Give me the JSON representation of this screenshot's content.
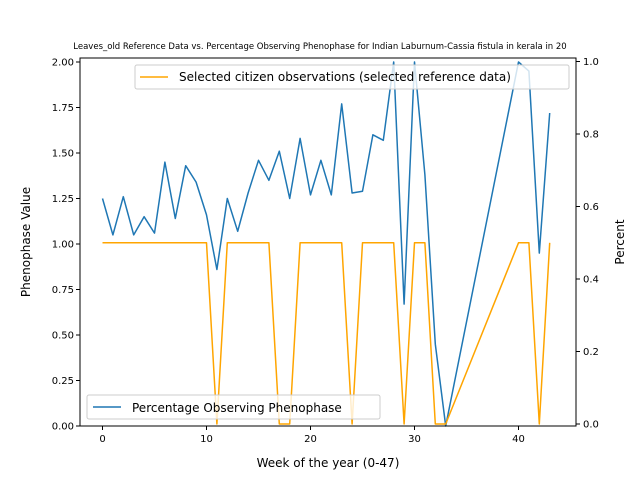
{
  "chart_data": {
    "type": "line",
    "title": "Leaves_old Reference Data vs. Percentage Observing Phenophase for Indian Laburnum-Cassia fistula in kerala in 20",
    "xlabel": "Week of the year (0-47)",
    "ylabel_left": "Phenophase Value",
    "ylabel_right": "Percent",
    "xlim": [
      -2,
      45
    ],
    "ylim_left": [
      0,
      2
    ],
    "ylim_right": [
      0,
      1
    ],
    "xticks": [
      "0",
      "10",
      "20",
      "30",
      "40"
    ],
    "yticks_left": [
      "0.00",
      "0.25",
      "0.50",
      "0.75",
      "1.00",
      "1.25",
      "1.50",
      "1.75",
      "2.00"
    ],
    "yticks_right": [
      "0.0",
      "0.2",
      "0.4",
      "0.6",
      "0.8",
      "1.0"
    ],
    "series": [
      {
        "name": "Percentage Observing Phenophase",
        "axis": "left",
        "color": "#1f77b4",
        "legend_position": "lower left",
        "x": [
          0,
          1,
          2,
          3,
          4,
          5,
          6,
          7,
          8,
          9,
          10,
          11,
          12,
          13,
          14,
          15,
          16,
          17,
          18,
          19,
          20,
          21,
          22,
          23,
          24,
          25,
          26,
          27,
          28,
          29,
          30,
          31,
          32,
          33,
          40,
          41,
          42,
          43
        ],
        "values": [
          1.25,
          1.05,
          1.26,
          1.05,
          1.15,
          1.06,
          1.45,
          1.14,
          1.43,
          1.34,
          1.16,
          0.86,
          1.25,
          1.07,
          1.28,
          1.46,
          1.35,
          1.51,
          1.25,
          1.58,
          1.27,
          1.46,
          1.27,
          1.77,
          1.28,
          1.29,
          1.6,
          1.57,
          2.0,
          0.67,
          2.0,
          1.38,
          0.45,
          0.0,
          2.0,
          1.95,
          0.95,
          1.72
        ]
      },
      {
        "name": "Selected citizen observations (selected reference data)",
        "axis": "right",
        "color": "#ffa500",
        "legend_position": "upper right",
        "x": [
          0,
          10,
          11,
          12,
          16,
          17,
          18,
          19,
          23,
          24,
          25,
          28,
          29,
          30,
          31,
          32,
          33,
          40,
          41,
          42,
          43
        ],
        "values": [
          0.5,
          0.5,
          0.0,
          0.5,
          0.5,
          0.0,
          0.0,
          0.5,
          0.5,
          0.0,
          0.5,
          0.5,
          0.0,
          0.5,
          0.5,
          0.0,
          0.0,
          0.5,
          0.5,
          0.0,
          0.5
        ]
      }
    ],
    "grid": false
  }
}
